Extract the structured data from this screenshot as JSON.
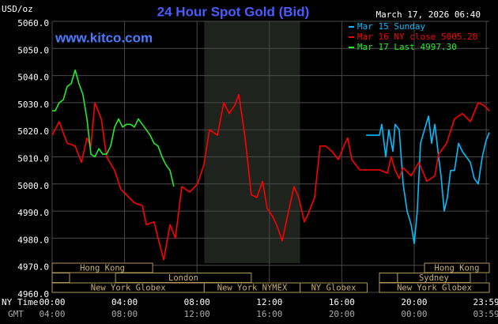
{
  "chart_data": {
    "type": "line",
    "title": "24 Hour Spot Gold (Bid)",
    "currency_label": "USD/oz",
    "timestamp": "March 17, 2026 06:40",
    "website": "www.kitco.com",
    "x_label_ny": "NY Time",
    "x_label_gmt": "GMT",
    "xlim": [
      0,
      24.15
    ],
    "ylim": [
      4960,
      5060
    ],
    "xticks": [
      {
        "value": 0,
        "label": "00:00"
      },
      {
        "value": 4,
        "label": "04:00"
      },
      {
        "value": 8,
        "label": "08:00"
      },
      {
        "value": 12,
        "label": "12:00"
      },
      {
        "value": 16,
        "label": "16:00"
      },
      {
        "value": 20,
        "label": "20:00"
      },
      {
        "value": 23.98,
        "label": "23:59"
      }
    ],
    "gmt_labels": [
      "04:00",
      "08:00",
      "12:00",
      "16:00",
      "20:00",
      "00:00",
      "03:59"
    ],
    "yticks": [
      {
        "value": 4960,
        "label": "4960.0"
      },
      {
        "value": 4970,
        "label": "4970.0"
      },
      {
        "value": 4980,
        "label": "4980.0"
      },
      {
        "value": 4990,
        "label": "4990.0"
      },
      {
        "value": 5000,
        "label": "5000.0"
      },
      {
        "value": 5010,
        "label": "5010.0"
      },
      {
        "value": 5020,
        "label": "5020.0"
      },
      {
        "value": 5030,
        "label": "5030.0"
      },
      {
        "value": 5040,
        "label": "5040.0"
      },
      {
        "value": 5050,
        "label": "5050.0"
      },
      {
        "value": 5060,
        "label": "5060.0"
      }
    ],
    "grid": true,
    "series": [
      {
        "name": "Mar 15 Sunday",
        "color": "#00bfff",
        "x": [
          17.34,
          18.08,
          18.21,
          18.43,
          18.6,
          18.82,
          18.95,
          19.17,
          19.39,
          19.61,
          19.83,
          20.0,
          20.17,
          20.35,
          20.57,
          20.79,
          20.96,
          21.14,
          21.35,
          21.48,
          21.66,
          21.83,
          22.01,
          22.23,
          22.45,
          22.66,
          22.88,
          23.1,
          23.32,
          23.54,
          23.76,
          23.97,
          24.15
        ],
        "values": [
          5018,
          5018,
          5022,
          5010,
          5020,
          5012,
          5022,
          5020,
          5000,
          4990,
          4985,
          4978,
          4990,
          5015,
          5020,
          5025,
          5015,
          5022,
          5010,
          5003,
          4990,
          4995,
          5005,
          5005,
          5015,
          5012,
          5010,
          5008,
          5002,
          5000,
          5010,
          5016,
          5019
        ]
      },
      {
        "name": "Mar 16 NY close 5005.20",
        "color": "#ff0000",
        "x": [
          0,
          0.39,
          0.83,
          1.27,
          1.62,
          1.92,
          2.14,
          2.36,
          2.71,
          3.01,
          3.45,
          3.8,
          4.1,
          4.54,
          4.98,
          5.2,
          5.63,
          5.85,
          6.16,
          6.51,
          6.81,
          7.16,
          7.6,
          8.03,
          8.38,
          8.69,
          9.13,
          9.48,
          9.78,
          10.09,
          10.31,
          10.66,
          11.0,
          11.31,
          11.62,
          11.88,
          12.18,
          12.4,
          12.71,
          12.93,
          13.36,
          13.62,
          13.93,
          14.15,
          14.5,
          14.8,
          15.11,
          15.46,
          15.81,
          16.11,
          16.33,
          16.55,
          16.99,
          18.08,
          18.52,
          18.73,
          18.95,
          19.17,
          19.39,
          19.83,
          20.26,
          20.7,
          21.14,
          21.35,
          21.79,
          22.23,
          22.66,
          23.1,
          23.54,
          23.84,
          24.15
        ],
        "values": [
          5018,
          5023,
          5015,
          5014,
          5008,
          5017,
          5014,
          5030,
          5024,
          5010,
          5005,
          4998,
          4996,
          4993,
          4992,
          4985,
          4986,
          4980,
          4972,
          4985,
          4980,
          4999,
          4997,
          5000,
          5007,
          5020,
          5018,
          5030,
          5026,
          5029,
          5033,
          5017,
          4996,
          4995,
          5001,
          4991,
          4988,
          4985,
          4979,
          4986,
          4999,
          4995,
          4986,
          4989,
          4995,
          5014,
          5014,
          5012,
          5009,
          5014,
          5017,
          5009,
          5005.2,
          5005.2,
          5004,
          5010,
          5005,
          5002,
          5006,
          5003,
          5008,
          5001,
          5003,
          5011,
          5015,
          5024,
          5026,
          5023,
          5030,
          5029,
          5027
        ]
      },
      {
        "name": "Mar 17 Last 4997.30",
        "color": "#22ee22",
        "x": [
          0,
          0.17,
          0.39,
          0.61,
          0.83,
          1.05,
          1.27,
          1.48,
          1.7,
          1.92,
          2.14,
          2.36,
          2.58,
          2.79,
          3.01,
          3.23,
          3.45,
          3.67,
          3.89,
          4.1,
          4.32,
          4.54,
          4.76,
          4.98,
          5.2,
          5.41,
          5.63,
          5.85,
          6.07,
          6.29,
          6.51,
          6.72
        ],
        "values": [
          5027,
          5027,
          5030,
          5031,
          5036,
          5037,
          5042,
          5037,
          5033,
          5024,
          5011,
          5010,
          5013,
          5011,
          5011,
          5014,
          5021,
          5024,
          5021,
          5022,
          5022,
          5021,
          5024,
          5022,
          5020,
          5018,
          5015,
          5014,
          5010,
          5007,
          5005,
          4999
        ]
      }
    ],
    "sessions": [
      {
        "label": "Hong Kong",
        "row": 0,
        "start": 0,
        "end": 5.55
      },
      {
        "row": 1,
        "start": 0,
        "end": 0.96
      },
      {
        "label": "London",
        "row": 1,
        "start": 3.5,
        "end": 11.0
      },
      {
        "label": "New York Globex",
        "row": 2,
        "start": 0,
        "end": 8.4
      },
      {
        "label": "New York NYMEX",
        "row": 2,
        "start": 8.4,
        "end": 13.7
      },
      {
        "label": "NY Globex",
        "row": 2,
        "start": 13.7,
        "end": 17.4
      },
      {
        "label": "Hong Kong",
        "row": 0,
        "start": 20.57,
        "end": 24.15
      },
      {
        "row": 1,
        "start": 18.08,
        "end": 19.08
      },
      {
        "label": "Sydney",
        "row": 1,
        "start": 19.08,
        "end": 23.1
      },
      {
        "label": "New York Globex",
        "row": 2,
        "start": 18.08,
        "end": 24.15
      }
    ],
    "shaded_session": 4
  }
}
